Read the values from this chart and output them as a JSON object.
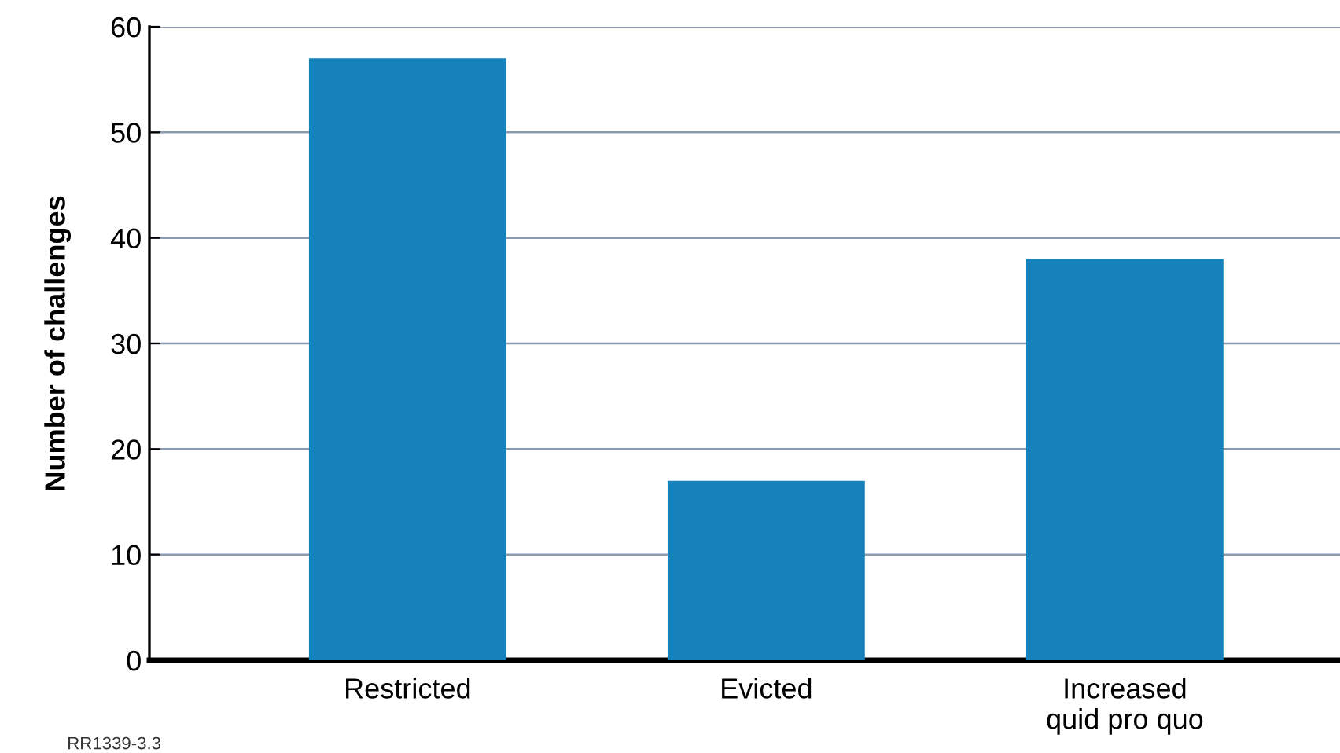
{
  "chart_data": {
    "type": "bar",
    "ylabel": "Number of challenges",
    "categories": [
      "Restricted",
      "Evicted",
      "Increased\nquid pro quo"
    ],
    "values": [
      57,
      17,
      38
    ],
    "color": "#1582bb",
    "ylim": [
      0,
      60
    ],
    "yticks": [
      0,
      10,
      20,
      30,
      40,
      50,
      60
    ],
    "grid": "y",
    "annotations": [
      "RR1339-3.3"
    ]
  }
}
